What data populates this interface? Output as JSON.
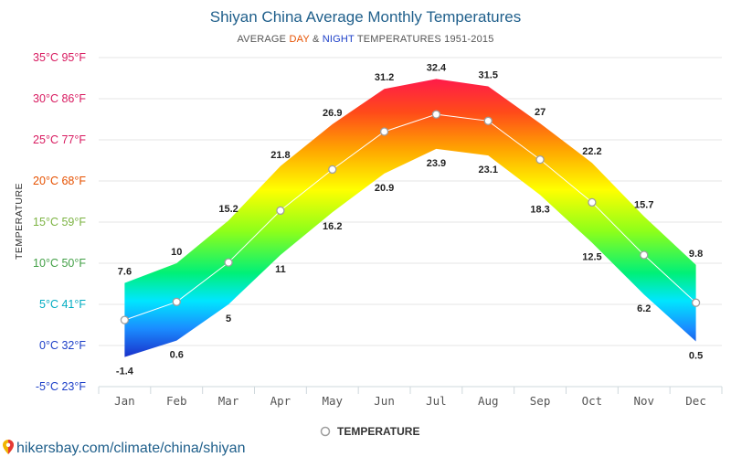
{
  "chart_data": {
    "type": "area",
    "title": "Shiyan China Average Monthly Temperatures",
    "subtitle_prefix": "AVERAGE ",
    "subtitle_day": "DAY",
    "subtitle_amp": " & ",
    "subtitle_night": "NIGHT",
    "subtitle_suffix": " TEMPERATURES 1951-2015",
    "ylabel": "TEMPERATURE",
    "ylim": [
      -5,
      35
    ],
    "yticks": [
      {
        "value": 35,
        "label": "35°C 95°F",
        "color": "#d81b60"
      },
      {
        "value": 30,
        "label": "30°C 86°F",
        "color": "#d81b60"
      },
      {
        "value": 25,
        "label": "25°C 77°F",
        "color": "#d81b60"
      },
      {
        "value": 20,
        "label": "20°C 68°F",
        "color": "#e65100"
      },
      {
        "value": 15,
        "label": "15°C 59°F",
        "color": "#7cb342"
      },
      {
        "value": 10,
        "label": "10°C 50°F",
        "color": "#43a047"
      },
      {
        "value": 5,
        "label": "5°C 41°F",
        "color": "#00acc1"
      },
      {
        "value": 0,
        "label": "0°C 32°F",
        "color": "#1e40c8"
      },
      {
        "value": -5,
        "label": "-5°C 23°F",
        "color": "#1e40c8"
      }
    ],
    "categories": [
      "Jan",
      "Feb",
      "Mar",
      "Apr",
      "May",
      "Jun",
      "Jul",
      "Aug",
      "Sep",
      "Oct",
      "Nov",
      "Dec"
    ],
    "series": [
      {
        "name": "DAY",
        "values": [
          7.6,
          10,
          15.2,
          21.8,
          26.9,
          31.2,
          32.4,
          31.5,
          27,
          22.2,
          15.7,
          9.8
        ]
      },
      {
        "name": "NIGHT",
        "values": [
          -1.4,
          0.6,
          5,
          11,
          16.2,
          20.9,
          23.9,
          23.1,
          18.3,
          12.5,
          6.2,
          0.5
        ]
      },
      {
        "name": "TEMPERATURE",
        "values": [
          3.1,
          5.3,
          10.1,
          16.4,
          21.4,
          26.0,
          28.1,
          27.3,
          22.6,
          17.4,
          11.0,
          5.2
        ]
      }
    ],
    "day_labels": [
      "7.6",
      "10",
      "15.2",
      "21.8",
      "26.9",
      "31.2",
      "32.4",
      "31.5",
      "27",
      "22.2",
      "15.7",
      "9.8"
    ],
    "night_labels": [
      "-1.4",
      "0.6",
      "5",
      "11",
      "16.2",
      "20.9",
      "23.9",
      "23.1",
      "18.3",
      "12.5",
      "6.2",
      "0.5"
    ],
    "legend": "TEMPERATURE",
    "grid": true
  },
  "source_text": "hikersbay.com/climate/china/shiyan",
  "colors": {
    "title": "#1f5f8b",
    "day": "#e65100",
    "night": "#1e40c8",
    "axis": "#cfd8dc"
  }
}
